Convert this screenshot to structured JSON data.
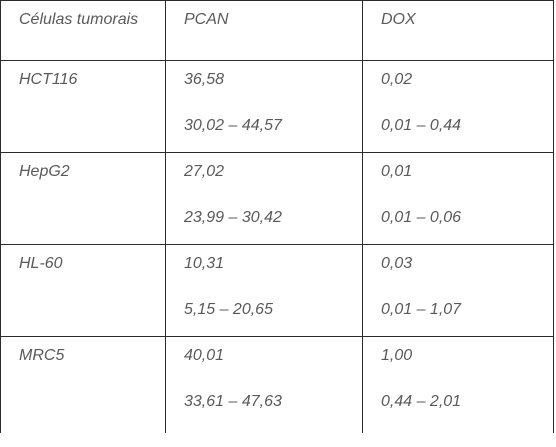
{
  "table": {
    "headers": [
      "Células tumorais",
      "PCAN",
      "DOX"
    ],
    "rows": [
      {
        "cell_line": "HCT116",
        "pcan_value": "36,58",
        "pcan_range": "30,02 – 44,57",
        "dox_value": "0,02",
        "dox_range": "0,01 – 0,44"
      },
      {
        "cell_line": "HepG2",
        "pcan_value": "27,02",
        "pcan_range": "23,99 – 30,42",
        "dox_value": "0,01",
        "dox_range": "0,01 – 0,06"
      },
      {
        "cell_line": "HL-60",
        "pcan_value": "10,31",
        "pcan_range": "5,15 – 20,65",
        "dox_value": "0,03",
        "dox_range": "0,01 – 1,07"
      },
      {
        "cell_line": "MRC5",
        "pcan_value": "40,01",
        "pcan_range": "33,61 – 47,63",
        "dox_value": "1,00",
        "dox_range": "0,44 – 2,01"
      }
    ]
  }
}
